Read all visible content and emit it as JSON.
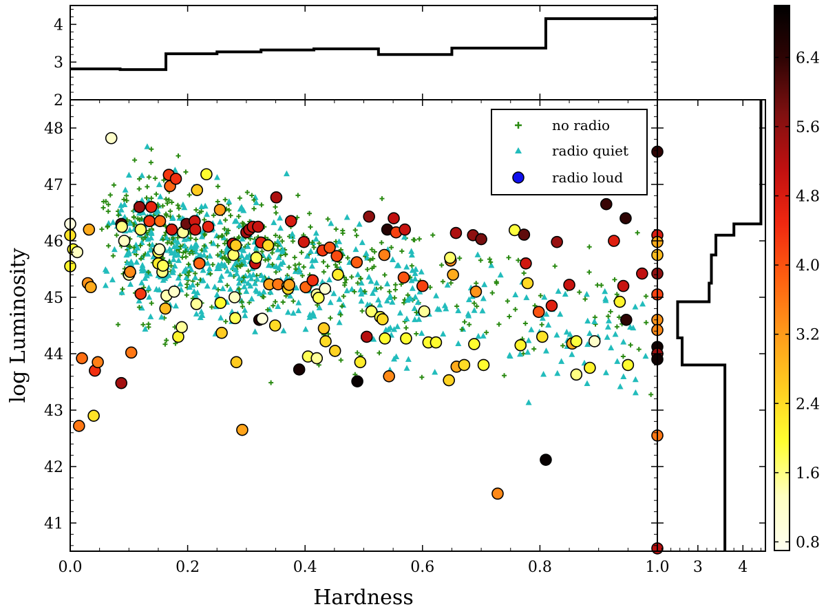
{
  "chart_data": {
    "type": "scatter",
    "main": {
      "xlabel": "Hardness",
      "ylabel": "log Luminosity",
      "xlim": [
        0.0,
        1.0
      ],
      "ylim": [
        40.5,
        48.5
      ],
      "xticks": [
        "0.0",
        "0.2",
        "0.4",
        "0.6",
        "0.8",
        "1.0"
      ],
      "yticks": [
        "41",
        "42",
        "43",
        "44",
        "45",
        "46",
        "47",
        "48"
      ],
      "legend": {
        "location": "top-right",
        "entries": [
          {
            "label": "no radio",
            "marker": "plus",
            "color": "#2a8a12"
          },
          {
            "label": "radio quiet",
            "marker": "triangle",
            "color": "#22bcbc"
          },
          {
            "label": "radio loud",
            "marker": "circle",
            "color": "#1010ee"
          }
        ]
      },
      "series": [
        {
          "name": "no radio",
          "marker": "plus",
          "color": "#2a8a12",
          "count": 520,
          "description": "dense cloud centred near hardness 0.1-0.5, log L 44.5-46.5"
        },
        {
          "name": "radio quiet",
          "marker": "triangle",
          "color": "#22bcbc",
          "count": 560,
          "description": "dense cloud centred near hardness 0.1-0.5, log L 44.5-46"
        },
        {
          "name": "radio loud",
          "marker": "circle",
          "colored_by": "colorbar",
          "points": [
            [
              0.0,
              46.3,
              0.9
            ],
            [
              0.0,
              46.1,
              2.3
            ],
            [
              0.005,
              45.85,
              2.0
            ],
            [
              0.012,
              45.8,
              1.3
            ],
            [
              0.0,
              45.55,
              2.1
            ],
            [
              0.015,
              42.72,
              3.6
            ],
            [
              0.02,
              43.92,
              3.7
            ],
            [
              0.03,
              45.25,
              3.3
            ],
            [
              0.032,
              46.2,
              3.0
            ],
            [
              0.035,
              45.18,
              3.0
            ],
            [
              0.04,
              42.9,
              2.3
            ],
            [
              0.042,
              43.7,
              4.4
            ],
            [
              0.047,
              43.85,
              3.5
            ],
            [
              0.07,
              47.82,
              1.2
            ],
            [
              0.087,
              43.48,
              5.4
            ],
            [
              0.087,
              46.3,
              6.1
            ],
            [
              0.088,
              46.25,
              1.6
            ],
            [
              0.092,
              46.0,
              1.3
            ],
            [
              0.1,
              45.4,
              1.4
            ],
            [
              0.102,
              45.45,
              3.4
            ],
            [
              0.104,
              44.02,
              3.6
            ],
            [
              0.118,
              46.6,
              5.5
            ],
            [
              0.12,
              45.06,
              4.3
            ],
            [
              0.12,
              46.2,
              1.7
            ],
            [
              0.135,
              46.35,
              4.3
            ],
            [
              0.138,
              46.6,
              4.6
            ],
            [
              0.15,
              45.8,
              1.8
            ],
            [
              0.15,
              45.6,
              2.2
            ],
            [
              0.152,
              45.85,
              1.2
            ],
            [
              0.153,
              46.35,
              3.7
            ],
            [
              0.157,
              45.45,
              1.6
            ],
            [
              0.158,
              45.56,
              1.8
            ],
            [
              0.162,
              44.8,
              2.8
            ],
            [
              0.164,
              45.03,
              1.4
            ],
            [
              0.168,
              47.17,
              4.3
            ],
            [
              0.17,
              46.97,
              3.8
            ],
            [
              0.173,
              46.2,
              4.8
            ],
            [
              0.177,
              45.1,
              1.2
            ],
            [
              0.18,
              47.1,
              4.4
            ],
            [
              0.184,
              44.3,
              2.1
            ],
            [
              0.19,
              44.47,
              1.5
            ],
            [
              0.192,
              46.15,
              1.5
            ],
            [
              0.198,
              46.3,
              5.9
            ],
            [
              0.212,
              46.35,
              4.9
            ],
            [
              0.213,
              46.2,
              4.9
            ],
            [
              0.215,
              44.88,
              1.5
            ],
            [
              0.216,
              46.9,
              2.6
            ],
            [
              0.22,
              45.6,
              3.8
            ],
            [
              0.232,
              47.18,
              2.0
            ],
            [
              0.235,
              46.25,
              4.6
            ],
            [
              0.255,
              46.55,
              3.2
            ],
            [
              0.256,
              44.9,
              2.0
            ],
            [
              0.258,
              44.37,
              2.6
            ],
            [
              0.277,
              45.95,
              5.0
            ],
            [
              0.278,
              45.75,
              1.7
            ],
            [
              0.28,
              45.0,
              1.3
            ],
            [
              0.281,
              44.63,
              1.8
            ],
            [
              0.282,
              45.92,
              2.6
            ],
            [
              0.283,
              43.85,
              2.6
            ],
            [
              0.293,
              42.65,
              3.1
            ],
            [
              0.3,
              46.15,
              5.4
            ],
            [
              0.305,
              46.2,
              5.2
            ],
            [
              0.311,
              46.25,
              4.9
            ],
            [
              0.315,
              45.6,
              5.0
            ],
            [
              0.317,
              45.7,
              1.8
            ],
            [
              0.32,
              46.25,
              5.0
            ],
            [
              0.322,
              44.6,
              6.5
            ],
            [
              0.325,
              45.97,
              4.6
            ],
            [
              0.327,
              44.62,
              1.0
            ],
            [
              0.337,
              45.92,
              2.4
            ],
            [
              0.339,
              45.23,
              3.1
            ],
            [
              0.349,
              44.5,
              2.4
            ],
            [
              0.351,
              46.77,
              5.3
            ],
            [
              0.354,
              45.23,
              3.6
            ],
            [
              0.37,
              45.2,
              1.6
            ],
            [
              0.371,
              45.15,
              2.4
            ],
            [
              0.373,
              45.22,
              3.1
            ],
            [
              0.376,
              46.35,
              4.8
            ],
            [
              0.39,
              43.72,
              6.7
            ],
            [
              0.398,
              45.98,
              4.9
            ],
            [
              0.401,
              45.18,
              3.8
            ],
            [
              0.405,
              43.95,
              1.8
            ],
            [
              0.413,
              45.3,
              4.4
            ],
            [
              0.42,
              43.92,
              1.5
            ],
            [
              0.42,
              45.05,
              1.5
            ],
            [
              0.423,
              44.99,
              1.8
            ],
            [
              0.43,
              45.83,
              4.3
            ],
            [
              0.432,
              44.45,
              2.6
            ],
            [
              0.434,
              45.15,
              1.1
            ],
            [
              0.435,
              44.22,
              2.4
            ],
            [
              0.442,
              45.88,
              4.0
            ],
            [
              0.451,
              44.05,
              2.5
            ],
            [
              0.454,
              45.73,
              4.1
            ],
            [
              0.456,
              45.4,
              2.2
            ],
            [
              0.488,
              45.62,
              3.9
            ],
            [
              0.489,
              43.51,
              6.9
            ],
            [
              0.494,
              43.85,
              2.2
            ],
            [
              0.505,
              44.3,
              5.2
            ],
            [
              0.509,
              46.43,
              5.6
            ],
            [
              0.513,
              44.75,
              1.7
            ],
            [
              0.528,
              44.65,
              1.9
            ],
            [
              0.532,
              44.61,
              2.4
            ],
            [
              0.535,
              45.75,
              3.5
            ],
            [
              0.536,
              44.27,
              2.0
            ],
            [
              0.54,
              46.2,
              6.5
            ],
            [
              0.543,
              43.6,
              3.4
            ],
            [
              0.551,
              46.4,
              5.1
            ],
            [
              0.555,
              46.15,
              4.2
            ],
            [
              0.57,
              46.2,
              5.0
            ],
            [
              0.568,
              45.35,
              4.0
            ],
            [
              0.572,
              44.27,
              2.0
            ],
            [
              0.6,
              45.2,
              4.2
            ],
            [
              0.603,
              44.75,
              1.5
            ],
            [
              0.61,
              44.2,
              2.0
            ],
            [
              0.623,
              44.2,
              2.0
            ],
            [
              0.648,
              45.65,
              3.4
            ],
            [
              0.647,
              45.7,
              1.7
            ],
            [
              0.645,
              43.53,
              2.5
            ],
            [
              0.652,
              45.4,
              3.0
            ],
            [
              0.657,
              46.14,
              5.3
            ],
            [
              0.658,
              43.77,
              3.0
            ],
            [
              0.671,
              43.8,
              2.4
            ],
            [
              0.686,
              46.1,
              5.6
            ],
            [
              0.688,
              44.17,
              2.0
            ],
            [
              0.691,
              45.1,
              3.3
            ],
            [
              0.7,
              46.03,
              5.8
            ],
            [
              0.704,
              43.8,
              2.0
            ],
            [
              0.728,
              41.52,
              3.4
            ],
            [
              0.757,
              46.19,
              1.9
            ],
            [
              0.767,
              44.15,
              2.1
            ],
            [
              0.773,
              46.11,
              6.0
            ],
            [
              0.776,
              45.6,
              4.9
            ],
            [
              0.779,
              45.25,
              2.4
            ],
            [
              0.798,
              44.74,
              4.0
            ],
            [
              0.804,
              44.3,
              2.3
            ],
            [
              0.81,
              42.12,
              6.9
            ],
            [
              0.82,
              44.85,
              4.7
            ],
            [
              0.829,
              45.98,
              5.5
            ],
            [
              0.85,
              45.22,
              5.0
            ],
            [
              0.855,
              44.18,
              3.0
            ],
            [
              0.862,
              43.63,
              1.6
            ],
            [
              0.862,
              44.22,
              1.9
            ],
            [
              0.885,
              43.75,
              2.1
            ],
            [
              0.893,
              44.22,
              1.2
            ],
            [
              0.913,
              46.65,
              6.3
            ],
            [
              0.926,
              46.0,
              4.7
            ],
            [
              0.936,
              44.92,
              2.1
            ],
            [
              0.942,
              45.2,
              5.0
            ],
            [
              0.946,
              46.4,
              6.4
            ],
            [
              0.947,
              44.6,
              6.4
            ],
            [
              0.95,
              43.8,
              2.0
            ],
            [
              0.974,
              45.42,
              5.1
            ],
            [
              1.0,
              47.58,
              6.4
            ],
            [
              1.0,
              46.1,
              4.8
            ],
            [
              1.0,
              45.98,
              3.0
            ],
            [
              1.0,
              45.75,
              2.8
            ],
            [
              1.0,
              45.42,
              5.6
            ],
            [
              1.0,
              45.05,
              4.2
            ],
            [
              1.0,
              44.6,
              3.3
            ],
            [
              1.0,
              44.42,
              3.4
            ],
            [
              1.0,
              44.12,
              6.8
            ],
            [
              1.0,
              44.0,
              5.5
            ],
            [
              1.0,
              43.9,
              6.8
            ],
            [
              1.0,
              42.55,
              3.6
            ],
            [
              1.0,
              40.55,
              5.2
            ]
          ]
        }
      ]
    },
    "top_histogram": {
      "type": "step",
      "ylim": [
        2,
        4.5
      ],
      "yticks": [
        "2",
        "3",
        "4"
      ],
      "bin_edges": [
        0.0,
        0.085,
        0.163,
        0.25,
        0.325,
        0.415,
        0.525,
        0.65,
        0.81,
        1.0
      ],
      "values": [
        2.82,
        2.8,
        3.22,
        3.27,
        3.32,
        3.35,
        3.2,
        3.37,
        4.15
      ]
    },
    "right_histogram": {
      "type": "step",
      "orientation": "horizontal",
      "xlim": [
        2.1,
        4.5
      ],
      "xticks": [
        "3",
        "4"
      ],
      "bin_edges": [
        40.5,
        43.8,
        44.28,
        44.92,
        45.25,
        45.75,
        46.1,
        46.3,
        48.5
      ],
      "values": [
        3.6,
        2.65,
        2.55,
        3.25,
        3.3,
        3.4,
        3.8,
        4.4
      ]
    },
    "colorbar": {
      "range": [
        0.7,
        7.0
      ],
      "ticks": [
        "0.8",
        "1.6",
        "2.4",
        "3.2",
        "4.0",
        "4.8",
        "5.6",
        "6.4"
      ],
      "colormap": "afmhot_r",
      "stops": [
        "#fffff0",
        "#ffffc0",
        "#ffff30",
        "#ffcc20",
        "#ff9a1a",
        "#ff6010",
        "#f02810",
        "#c01010",
        "#801010",
        "#300404",
        "#000000"
      ]
    }
  }
}
